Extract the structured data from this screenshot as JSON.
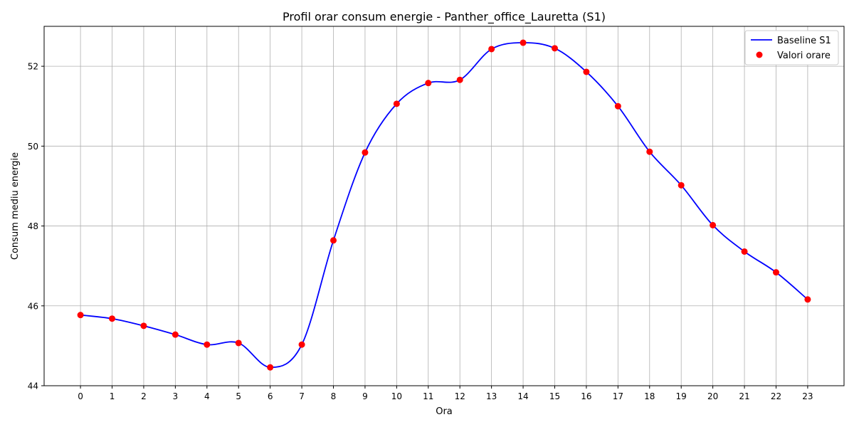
{
  "chart_data": {
    "type": "line",
    "title": "Profil orar consum energie - Panther_office_Lauretta (S1)",
    "xlabel": "Ora",
    "ylabel": "Consum mediu energie",
    "x": [
      0,
      1,
      2,
      3,
      4,
      5,
      6,
      7,
      8,
      9,
      10,
      11,
      12,
      13,
      14,
      15,
      16,
      17,
      18,
      19,
      20,
      21,
      22,
      23
    ],
    "x_tick_labels": [
      "0",
      "1",
      "2",
      "3",
      "4",
      "5",
      "6",
      "7",
      "8",
      "9",
      "10",
      "11",
      "12",
      "13",
      "14",
      "15",
      "16",
      "17",
      "18",
      "19",
      "20",
      "21",
      "22",
      "23"
    ],
    "y_ticks": [
      44,
      46,
      48,
      50,
      52
    ],
    "y_tick_labels": [
      "44",
      "46",
      "48",
      "50",
      "52"
    ],
    "xlim": [
      -1.15,
      24.15
    ],
    "ylim": [
      44,
      53
    ],
    "grid": true,
    "legend_position": "top-right",
    "series": [
      {
        "name": "Baseline S1",
        "kind": "smooth-line",
        "color": "#0000ff",
        "values": [
          45.77,
          45.68,
          45.5,
          45.28,
          45.03,
          45.07,
          44.46,
          45.03,
          47.64,
          49.84,
          51.06,
          51.58,
          51.66,
          52.43,
          52.59,
          52.45,
          51.86,
          51.0,
          49.86,
          49.02,
          48.02,
          47.36,
          46.84,
          46.16
        ]
      },
      {
        "name": "Valori orare",
        "kind": "scatter",
        "color": "#ff0000",
        "values": [
          45.77,
          45.68,
          45.5,
          45.28,
          45.03,
          45.07,
          44.46,
          45.03,
          47.64,
          49.84,
          51.06,
          51.58,
          51.66,
          52.43,
          52.59,
          52.45,
          51.86,
          51.0,
          49.86,
          49.02,
          48.02,
          47.36,
          46.84,
          46.16
        ]
      }
    ]
  }
}
